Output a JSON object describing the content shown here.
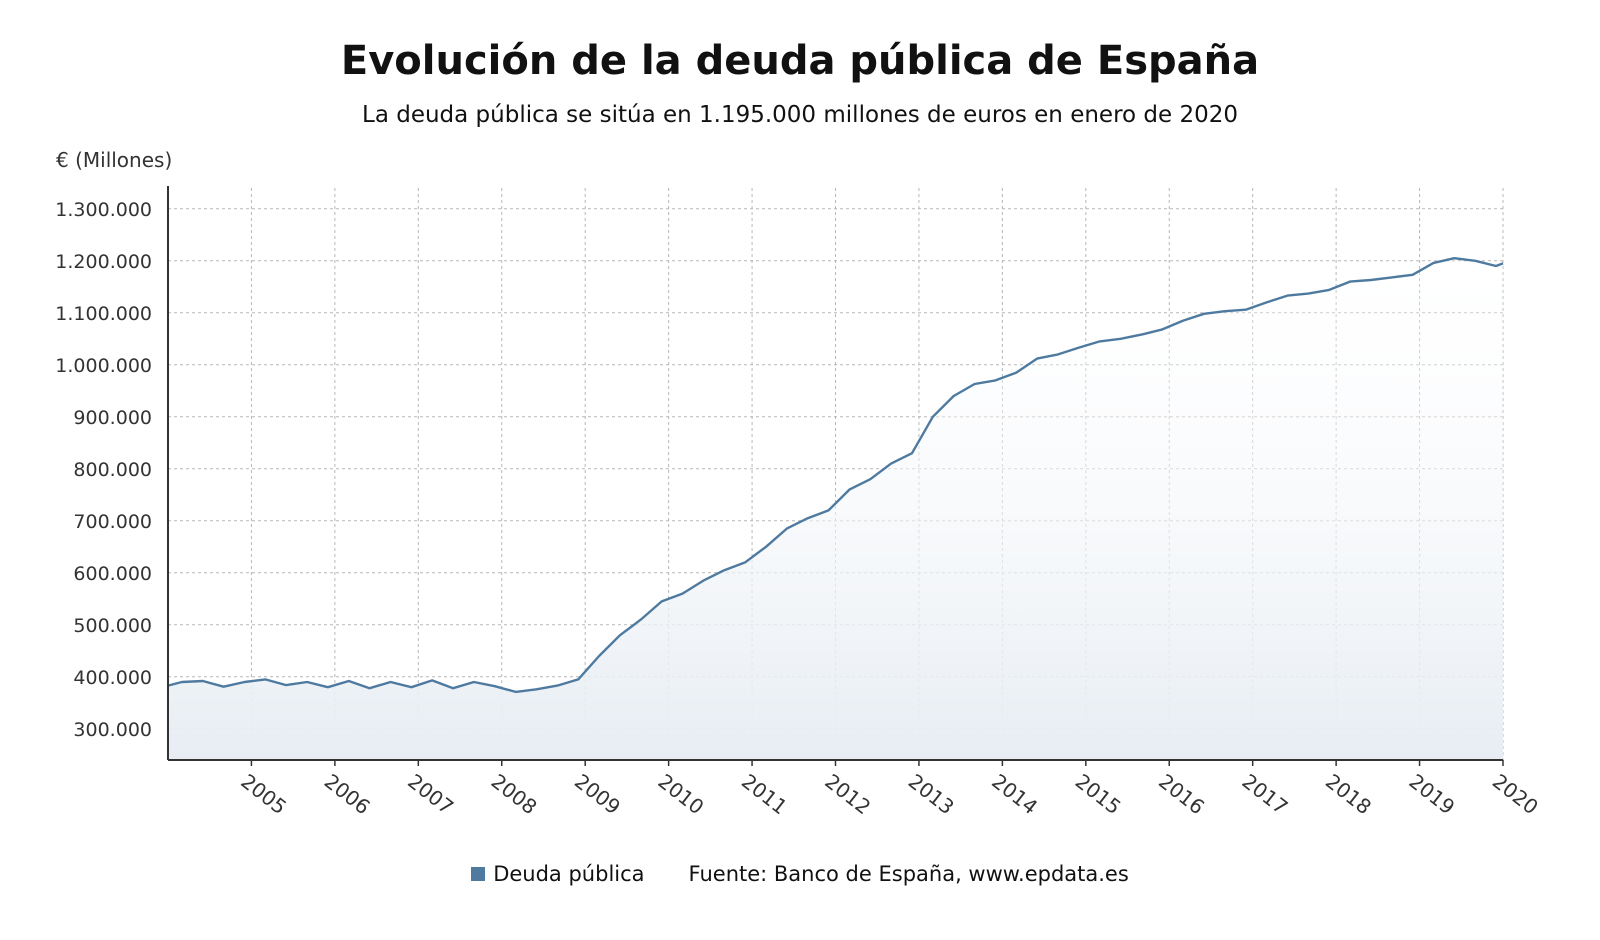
{
  "chart_data": {
    "type": "area",
    "title": "Evolución de la deuda pública de España",
    "subtitle": "La deuda pública se sitúa en 1.195.000 millones de euros en enero de 2020",
    "ylabel": "€ (Millones)",
    "xlabel": "",
    "ylim": [
      240000,
      1340000
    ],
    "xlim": [
      "2004-01",
      "2020-01"
    ],
    "yticks": [
      300000,
      400000,
      500000,
      600000,
      700000,
      800000,
      900000,
      1000000,
      1100000,
      1200000,
      1300000
    ],
    "ytick_labels": [
      "300.000",
      "400.000",
      "500.000",
      "600.000",
      "700.000",
      "800.000",
      "900.000",
      "1.000.000",
      "1.100.000",
      "1.200.000",
      "1.300.000"
    ],
    "xticks": [
      "2005",
      "2006",
      "2007",
      "2008",
      "2009",
      "2010",
      "2011",
      "2012",
      "2013",
      "2014",
      "2015",
      "2016",
      "2017",
      "2018",
      "2019",
      "2020"
    ],
    "grid": true,
    "legend_position": "bottom",
    "series": [
      {
        "name": "Deuda pública",
        "color": "#4f7aa0",
        "points": [
          [
            "2004-01",
            383000
          ],
          [
            "2004-03",
            390000
          ],
          [
            "2004-06",
            392000
          ],
          [
            "2004-09",
            381000
          ],
          [
            "2004-12",
            390000
          ],
          [
            "2005-03",
            395000
          ],
          [
            "2005-06",
            384000
          ],
          [
            "2005-09",
            390000
          ],
          [
            "2005-12",
            380000
          ],
          [
            "2006-03",
            392000
          ],
          [
            "2006-06",
            378000
          ],
          [
            "2006-09",
            390000
          ],
          [
            "2006-12",
            380000
          ],
          [
            "2007-03",
            393000
          ],
          [
            "2007-06",
            378000
          ],
          [
            "2007-09",
            390000
          ],
          [
            "2007-12",
            382000
          ],
          [
            "2008-03",
            371000
          ],
          [
            "2008-06",
            376000
          ],
          [
            "2008-09",
            383000
          ],
          [
            "2008-12",
            395000
          ],
          [
            "2009-03",
            440000
          ],
          [
            "2009-06",
            480000
          ],
          [
            "2009-09",
            510000
          ],
          [
            "2009-12",
            545000
          ],
          [
            "2010-03",
            560000
          ],
          [
            "2010-06",
            585000
          ],
          [
            "2010-09",
            605000
          ],
          [
            "2010-12",
            620000
          ],
          [
            "2011-03",
            650000
          ],
          [
            "2011-06",
            685000
          ],
          [
            "2011-09",
            705000
          ],
          [
            "2011-12",
            720000
          ],
          [
            "2012-03",
            760000
          ],
          [
            "2012-06",
            780000
          ],
          [
            "2012-09",
            810000
          ],
          [
            "2012-12",
            830000
          ],
          [
            "2013-03",
            900000
          ],
          [
            "2013-06",
            940000
          ],
          [
            "2013-09",
            963000
          ],
          [
            "2013-12",
            970000
          ],
          [
            "2014-03",
            985000
          ],
          [
            "2014-06",
            1012000
          ],
          [
            "2014-09",
            1020000
          ],
          [
            "2014-12",
            1033000
          ],
          [
            "2015-03",
            1045000
          ],
          [
            "2015-06",
            1050000
          ],
          [
            "2015-09",
            1058000
          ],
          [
            "2015-12",
            1068000
          ],
          [
            "2016-03",
            1085000
          ],
          [
            "2016-06",
            1098000
          ],
          [
            "2016-09",
            1103000
          ],
          [
            "2016-12",
            1106000
          ],
          [
            "2017-03",
            1120000
          ],
          [
            "2017-06",
            1133000
          ],
          [
            "2017-09",
            1137000
          ],
          [
            "2017-12",
            1144000
          ],
          [
            "2018-03",
            1160000
          ],
          [
            "2018-06",
            1163000
          ],
          [
            "2018-09",
            1168000
          ],
          [
            "2018-12",
            1173000
          ],
          [
            "2019-03",
            1196000
          ],
          [
            "2019-06",
            1205000
          ],
          [
            "2019-09",
            1200000
          ],
          [
            "2019-12",
            1190000
          ],
          [
            "2020-01",
            1195000
          ]
        ]
      }
    ]
  },
  "legend": {
    "items": [
      {
        "label": "Deuda pública",
        "color": "#4f7aa0"
      }
    ],
    "source": "Fuente: Banco de España, www.epdata.es"
  }
}
